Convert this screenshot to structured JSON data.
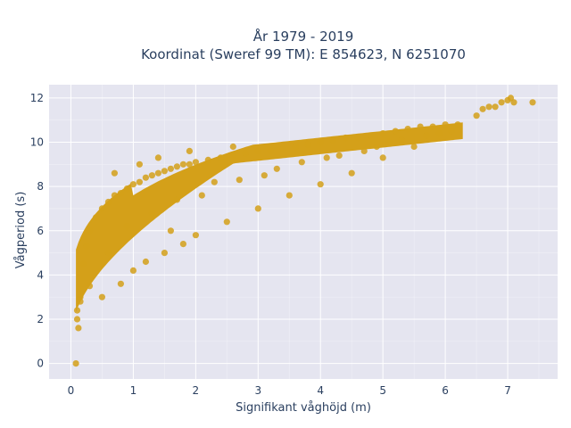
{
  "chart_data": {
    "type": "scatter",
    "title_line1": "År 1979 - 2019",
    "title_line2": "Koordinat (Sweref 99 TM): E 854623, N 6251070",
    "xlabel": "Signifikant våghöjd (m)",
    "ylabel": "Vågperiod (s)",
    "xlim": [
      -0.35,
      7.8
    ],
    "ylim": [
      -0.7,
      12.6
    ],
    "x_ticks": [
      "0",
      "1",
      "2",
      "3",
      "4",
      "5",
      "6",
      "7"
    ],
    "y_ticks": [
      "0",
      "2",
      "4",
      "6",
      "8",
      "10",
      "12"
    ],
    "grid": true,
    "plot_bg": "#e5e5f0",
    "marker_color": "#d4a019",
    "series": [
      {
        "x": [
          0.08,
          0.1,
          0.12,
          0.15,
          0.2,
          0.25,
          0.3,
          0.4,
          0.5,
          0.6,
          0.7,
          0.8,
          0.9,
          1.0,
          1.1,
          1.2,
          1.3,
          1.4,
          1.5,
          1.6,
          1.7,
          1.8,
          1.9,
          2.0,
          2.2,
          2.4,
          2.6,
          2.8,
          3.0,
          3.2,
          3.4,
          3.6,
          3.8,
          4.0,
          4.2,
          4.4,
          4.6,
          4.8,
          5.0,
          5.2,
          5.4,
          5.6,
          5.8,
          6.0,
          6.2,
          6.5,
          6.6,
          6.7,
          6.8,
          6.9,
          7.0,
          7.05,
          7.1,
          7.4,
          0.5,
          0.8,
          1.0,
          1.2,
          1.5,
          1.8,
          2.0,
          2.5,
          3.0,
          3.5,
          4.0,
          4.5,
          5.0,
          5.5,
          0.1,
          0.15,
          0.3,
          0.6,
          0.9,
          1.3,
          1.7,
          2.1,
          2.3,
          2.7,
          3.1,
          3.3,
          3.7,
          4.1,
          4.3,
          4.7,
          4.9,
          5.1,
          5.3,
          5.7,
          5.9,
          6.1,
          1.1,
          1.4,
          1.9,
          2.6,
          0.7,
          1.6
        ],
        "y": [
          0.0,
          2.0,
          1.6,
          3.0,
          4.5,
          5.3,
          6.0,
          6.6,
          7.0,
          7.3,
          7.6,
          7.7,
          7.9,
          8.1,
          8.2,
          8.4,
          8.5,
          8.6,
          8.7,
          8.8,
          8.9,
          9.0,
          9.0,
          9.1,
          9.2,
          9.3,
          9.4,
          9.5,
          9.6,
          9.6,
          9.7,
          9.8,
          9.9,
          10.0,
          10.1,
          10.2,
          10.2,
          10.3,
          10.4,
          10.5,
          10.6,
          10.7,
          10.7,
          10.8,
          10.8,
          11.2,
          11.5,
          11.6,
          11.6,
          11.8,
          11.9,
          12.0,
          11.8,
          11.8,
          3.0,
          3.6,
          4.2,
          4.6,
          5.0,
          5.4,
          5.8,
          6.4,
          7.0,
          7.6,
          8.1,
          8.6,
          9.3,
          9.8,
          2.4,
          2.8,
          3.5,
          5.0,
          6.2,
          6.8,
          7.4,
          7.6,
          8.2,
          8.3,
          8.5,
          8.8,
          9.1,
          9.3,
          9.4,
          9.6,
          9.8,
          10.0,
          10.1,
          10.3,
          10.4,
          10.5,
          9.0,
          9.3,
          9.6,
          9.8,
          8.6,
          6.0
        ]
      }
    ]
  }
}
